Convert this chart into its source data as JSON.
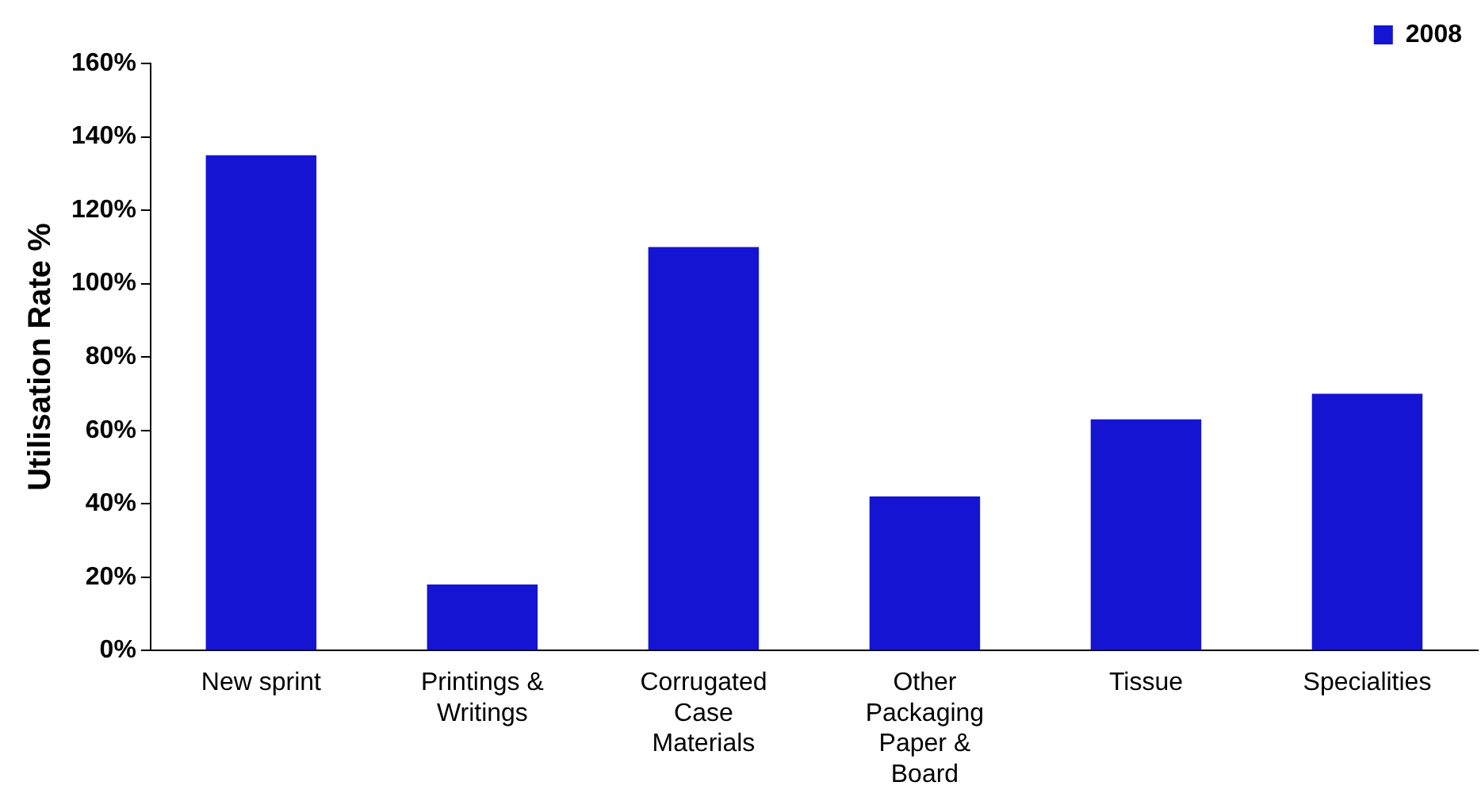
{
  "chart_data": {
    "type": "bar",
    "ylabel": "Utilisation Rate %",
    "categories": [
      "New sprint",
      "Printings & Writings",
      "Corrugated Case Materials",
      "Other Packaging Paper & Board",
      "Tissue",
      "Specialities"
    ],
    "series": [
      {
        "name": "2008",
        "color": "#1414d2",
        "values": [
          135,
          18,
          110,
          42,
          63,
          70
        ]
      }
    ],
    "ylim": [
      0,
      160
    ],
    "yticks": [
      {
        "value": 0,
        "label": "0%"
      },
      {
        "value": 20,
        "label": "20%"
      },
      {
        "value": 40,
        "label": "40%"
      },
      {
        "value": 60,
        "label": "60%"
      },
      {
        "value": 80,
        "label": "80%"
      },
      {
        "value": 100,
        "label": "100%"
      },
      {
        "value": 120,
        "label": "120%"
      },
      {
        "value": 140,
        "label": "140%"
      },
      {
        "value": 160,
        "label": "160%"
      }
    ],
    "grid": false,
    "legend": "top right"
  }
}
